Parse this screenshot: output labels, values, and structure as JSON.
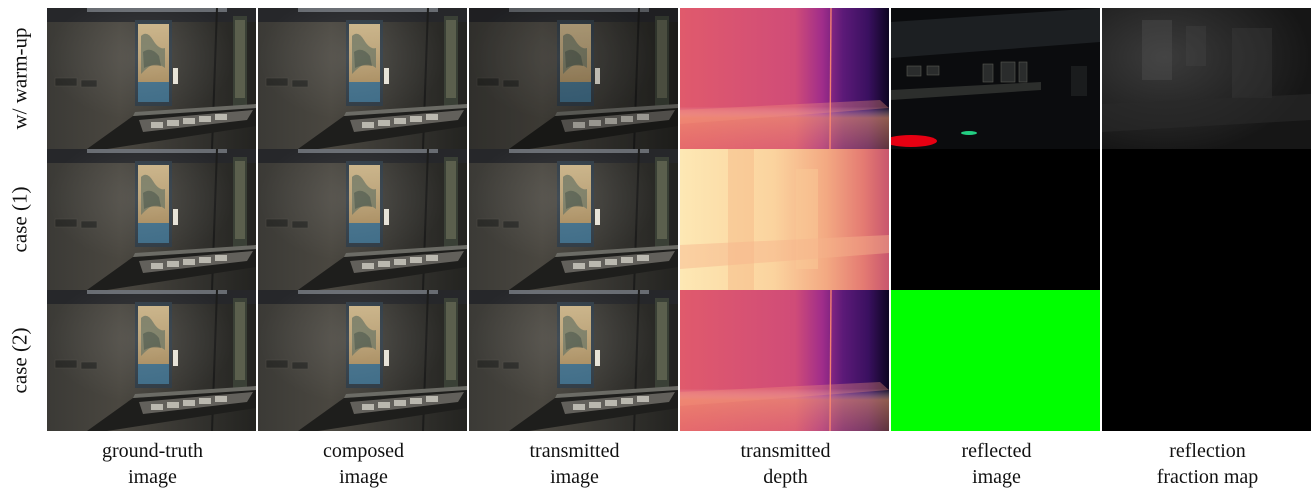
{
  "figure": {
    "row_labels": [
      "w/ warm-up",
      "case (1)",
      "case (2)"
    ],
    "column_labels": [
      "ground-truth\nimage",
      "composed\nimage",
      "transmitted\nimage",
      "transmitted\ndepth",
      "reflected\nimage",
      "reflection\nfraction map"
    ],
    "colors": {
      "background": "#ffffff",
      "gallery_dark": "#2a2a28",
      "scroll_silk": "#c9b286",
      "depth_magma_warm": "#e05a6c",
      "depth_magma_cool": "#3a1060",
      "depth_magma_light": "#fde8b4",
      "reflected_green": "#00ff00",
      "black": "#000000"
    },
    "grid": [
      [
        "gallery-photo",
        "gallery-photo",
        "gallery-photo-dark",
        "depth-magma",
        "reflection-gallery",
        "fraction-gray"
      ],
      [
        "gallery-photo",
        "gallery-photo",
        "gallery-photo",
        "depth-magma-bright",
        "black",
        "black"
      ],
      [
        "gallery-photo",
        "gallery-photo",
        "gallery-photo",
        "depth-magma",
        "solid-green",
        "black"
      ]
    ]
  }
}
